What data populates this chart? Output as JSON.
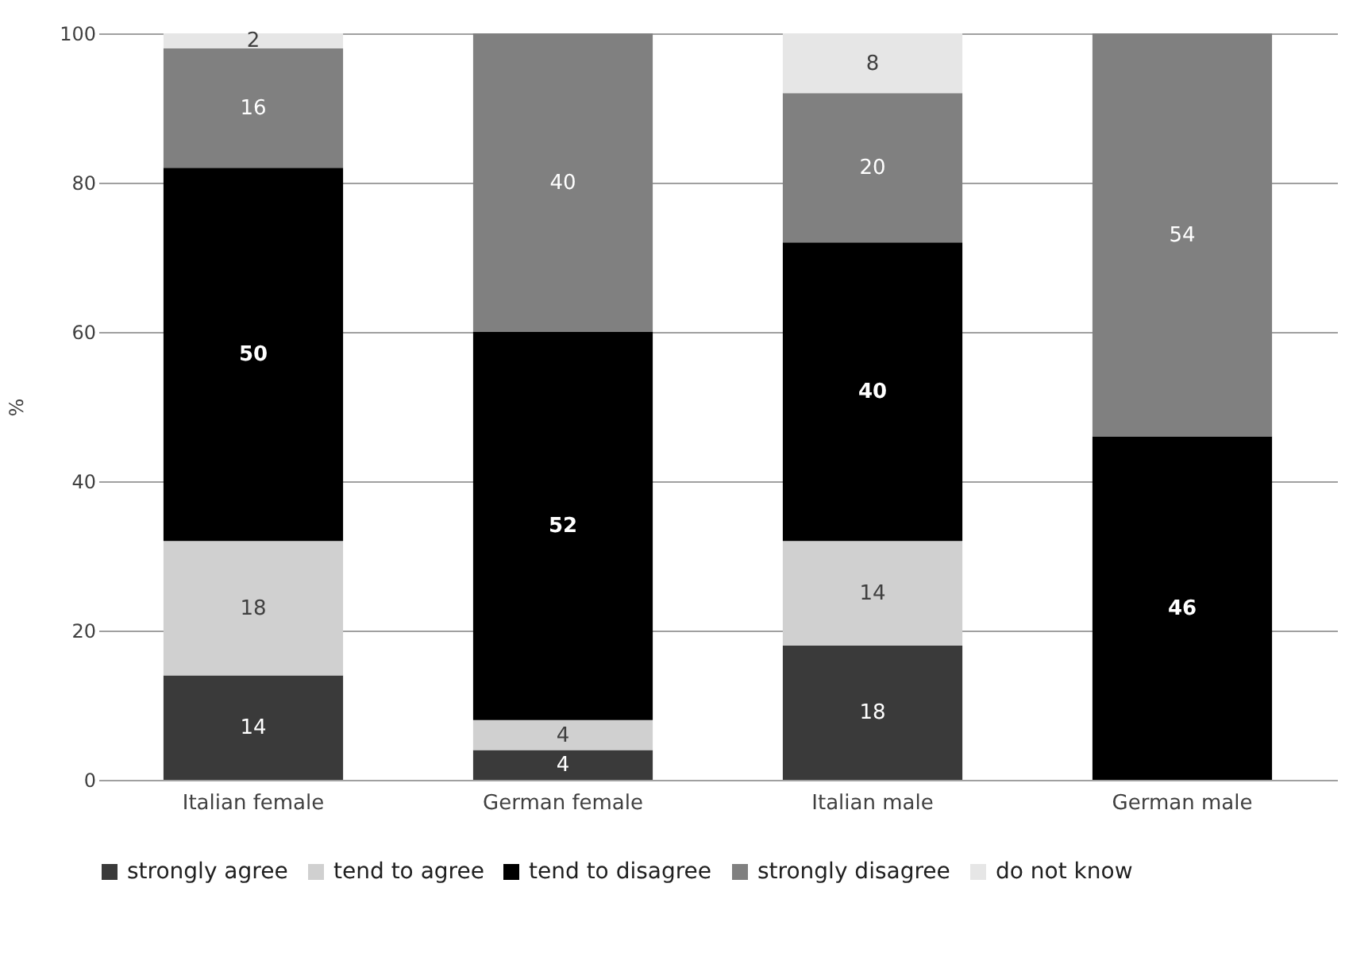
{
  "chart_data": {
    "type": "bar",
    "stacked": true,
    "ylabel": "%",
    "categories": [
      "Italian female",
      "German female",
      "Italian male",
      "German male"
    ],
    "series": [
      {
        "name": "strongly agree",
        "color": "#3a3a3a",
        "values": [
          14,
          4,
          18,
          0
        ],
        "value_labels": [
          "14",
          "4",
          "18",
          null
        ]
      },
      {
        "name": "tend to agree",
        "color": "#d0d0d0",
        "values": [
          18,
          4,
          14,
          0
        ],
        "value_labels": [
          "18",
          "4",
          "14",
          null
        ]
      },
      {
        "name": "tend to disagree",
        "color": "#000000",
        "values": [
          50,
          52,
          40,
          46
        ],
        "value_labels": [
          "50",
          "52",
          "40",
          "46"
        ]
      },
      {
        "name": "strongly disagree",
        "color": "#808080",
        "values": [
          16,
          40,
          20,
          54
        ],
        "value_labels": [
          "16",
          "40",
          "20",
          "54"
        ]
      },
      {
        "name": "do not know",
        "color": "#e6e6e6",
        "values": [
          2,
          0,
          8,
          0
        ],
        "value_labels": [
          "2",
          null,
          "8",
          null
        ]
      }
    ],
    "ylim": [
      0,
      100
    ],
    "yticks": [
      0,
      20,
      40,
      60,
      80,
      100
    ],
    "grid": "y",
    "legend": "bottom"
  }
}
